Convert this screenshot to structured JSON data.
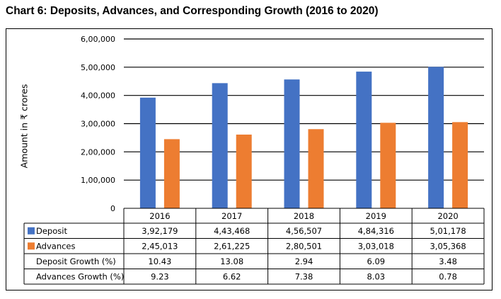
{
  "chart_data": {
    "type": "bar",
    "title": "Chart 6: Deposits, Advances, and Corresponding Growth (2016 to 2020)",
    "xlabel": "",
    "ylabel": "Amount in ₹ crores",
    "ylim": [
      0,
      600000
    ],
    "yticks": [
      0,
      100000,
      200000,
      300000,
      400000,
      500000,
      600000
    ],
    "ytick_labels": [
      "0",
      "1,00,000",
      "2,00,000",
      "3,00,000",
      "4,00,000",
      "5,00,000",
      "6,00,000"
    ],
    "grid": true,
    "categories": [
      "2016",
      "2017",
      "2018",
      "2019",
      "2020"
    ],
    "series": [
      {
        "name": "Deposit",
        "color": "#4472c4",
        "values": [
          392179,
          443468,
          456507,
          484316,
          501178
        ],
        "labels": [
          "3,92,179",
          "4,43,468",
          "4,56,507",
          "4,84,316",
          "5,01,178"
        ]
      },
      {
        "name": "Advances",
        "color": "#ed7d31",
        "values": [
          245013,
          261225,
          280501,
          303018,
          305368
        ],
        "labels": [
          "2,45,013",
          "2,61,225",
          "2,80,501",
          "3,03,018",
          "3,05,368"
        ]
      }
    ],
    "data_table": {
      "rows": [
        {
          "label": "Deposit",
          "legend_color": "#4472c4",
          "cells": [
            "3,92,179",
            "4,43,468",
            "4,56,507",
            "4,84,316",
            "5,01,178"
          ]
        },
        {
          "label": "Advances",
          "legend_color": "#ed7d31",
          "cells": [
            "2,45,013",
            "2,61,225",
            "2,80,501",
            "3,03,018",
            "3,05,368"
          ]
        },
        {
          "label": "Deposit Growth (%)",
          "legend_color": null,
          "cells": [
            "10.43",
            "13.08",
            "2.94",
            "6.09",
            "3.48"
          ]
        },
        {
          "label": "Advances Growth (%)",
          "legend_color": null,
          "cells": [
            "9.23",
            "6.62",
            "7.38",
            "8.03",
            "0.78"
          ]
        }
      ]
    },
    "legend": "in data table (left)"
  }
}
